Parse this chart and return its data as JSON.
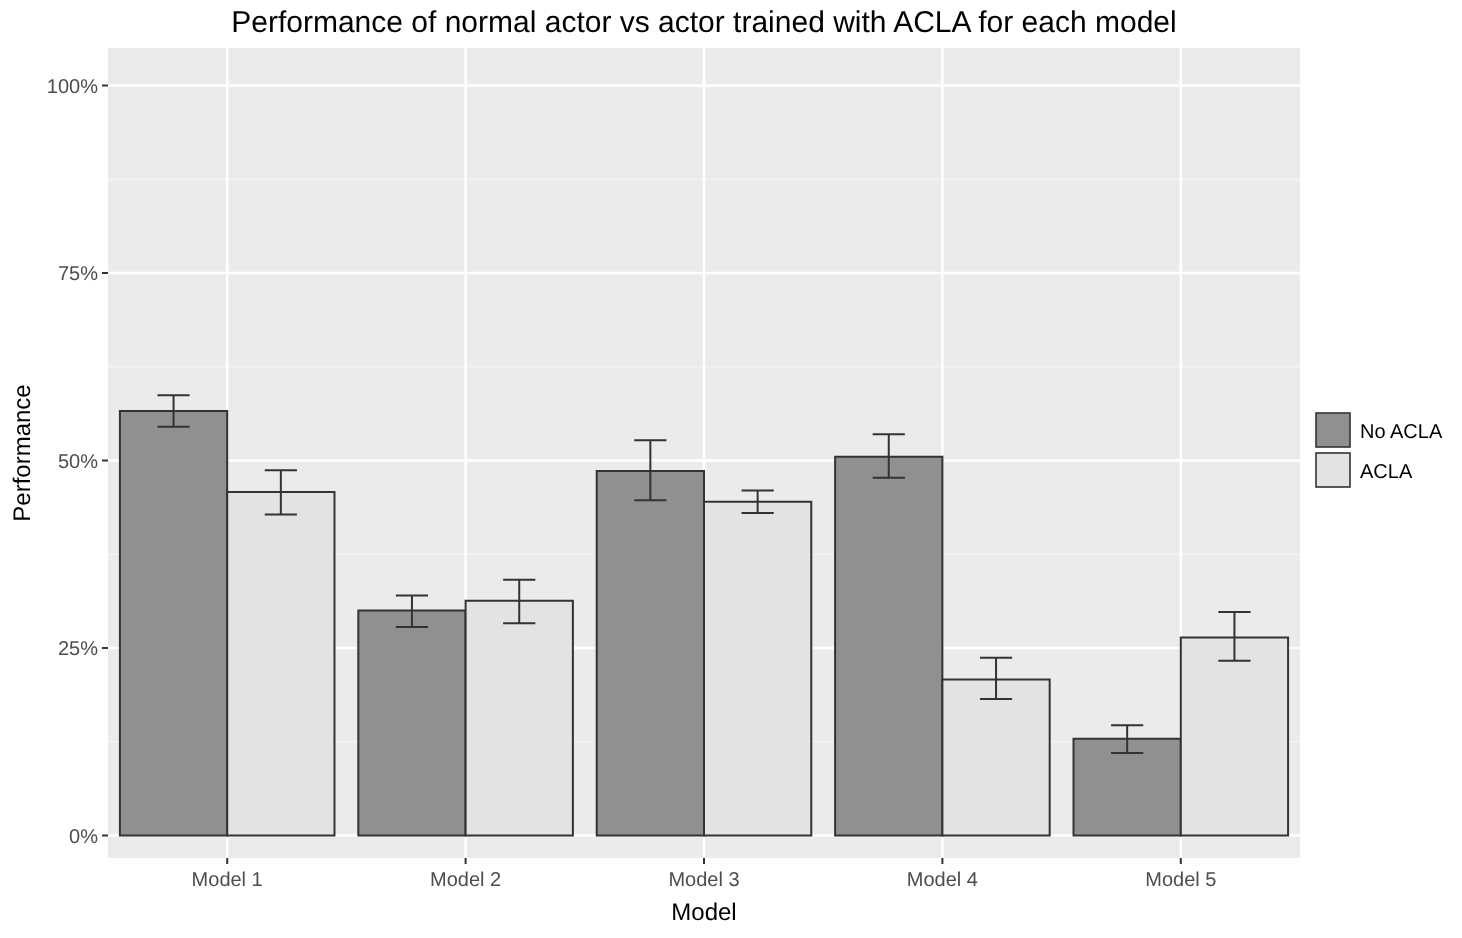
{
  "chart_data": {
    "type": "bar",
    "title": "Performance of normal actor vs actor trained with ACLA for each model",
    "xlabel": "Model",
    "ylabel": "Performance",
    "categories": [
      "Model 1",
      "Model 2",
      "Model 3",
      "Model 4",
      "Model 5"
    ],
    "series": [
      {
        "name": "No ACLA",
        "color": "#8f908f",
        "values": [
          56.6,
          30.0,
          48.6,
          50.5,
          12.9
        ],
        "errors": [
          [
            54.5,
            58.7
          ],
          [
            27.8,
            32.0
          ],
          [
            44.7,
            52.7
          ],
          [
            47.7,
            53.5
          ],
          [
            11.0,
            14.7
          ]
        ]
      },
      {
        "name": "ACLA",
        "color": "#e3e3e3",
        "values": [
          45.8,
          31.3,
          44.5,
          20.8,
          26.4
        ],
        "errors": [
          [
            42.8,
            48.7
          ],
          [
            28.3,
            34.1
          ],
          [
            43.0,
            46.0
          ],
          [
            18.2,
            23.7
          ],
          [
            23.3,
            29.8
          ]
        ]
      }
    ],
    "ylim": [
      -3,
      105
    ],
    "yticks": [
      {
        "value": 0,
        "label": "0%"
      },
      {
        "value": 25,
        "label": "25%"
      },
      {
        "value": 50,
        "label": "50%"
      },
      {
        "value": 75,
        "label": "75%"
      },
      {
        "value": 100,
        "label": "100%"
      }
    ],
    "grid": true,
    "legend": "right"
  }
}
